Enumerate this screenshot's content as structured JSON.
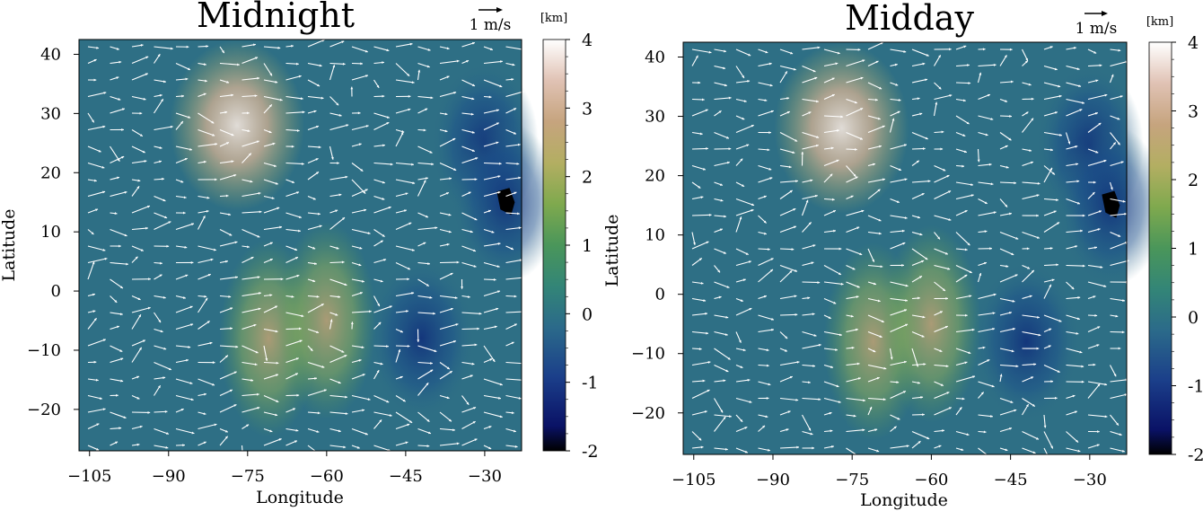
{
  "chart_data": [
    {
      "type": "heatmap",
      "title": "Midnight",
      "xlabel": "Longitude",
      "ylabel": "Latitude",
      "xlim": [
        -107,
        -23
      ],
      "ylim": [
        -27,
        42.5
      ],
      "xticks": [
        -105,
        -90,
        -75,
        -60,
        -45,
        -30
      ],
      "yticks": [
        -20,
        -10,
        0,
        10,
        20,
        30,
        40
      ],
      "xtick_labels": [
        "−105",
        "−90",
        "−75",
        "−60",
        "−45",
        "−30"
      ],
      "ytick_labels": [
        "−20",
        "−10",
        "0",
        "10",
        "20",
        "30",
        "40"
      ],
      "quiver_key": "1 m/s",
      "colorbar": {
        "unit": "[km]",
        "range": [
          -2,
          4
        ],
        "ticks": [
          "4",
          "3",
          "2",
          "1",
          "0",
          "-1",
          "-2"
        ],
        "colormap": "gist_earth-like terrain"
      },
      "field_features": [
        {
          "lon": -77,
          "lat": 28,
          "value": 3.6
        },
        {
          "lon": -71,
          "lat": -8,
          "value": 2.4
        },
        {
          "lon": -60,
          "lat": -5,
          "value": 1.8
        },
        {
          "lon": -42,
          "lat": -8,
          "value": -1.2
        },
        {
          "lon": -30,
          "lat": 25,
          "value": -1.4
        },
        {
          "lon": -26,
          "lat": 15,
          "value": -2.0
        }
      ]
    },
    {
      "type": "heatmap",
      "title": "Midday",
      "xlabel": "Longitude",
      "ylabel": "Latitude",
      "xlim": [
        -107,
        -23
      ],
      "ylim": [
        -27,
        42.5
      ],
      "xticks": [
        -105,
        -90,
        -75,
        -60,
        -45,
        -30
      ],
      "yticks": [
        -20,
        -10,
        0,
        10,
        20,
        30,
        40
      ],
      "xtick_labels": [
        "−105",
        "−90",
        "−75",
        "−60",
        "−45",
        "−30"
      ],
      "ytick_labels": [
        "−20",
        "−10",
        "0",
        "10",
        "20",
        "30",
        "40"
      ],
      "quiver_key": "1 m/s",
      "colorbar": {
        "unit": "[km]",
        "range": [
          -2,
          4
        ],
        "ticks": [
          "4",
          "3",
          "2",
          "1",
          "0",
          "-1",
          "-2"
        ],
        "colormap": "gist_earth-like terrain"
      },
      "field_features": [
        {
          "lon": -77,
          "lat": 28,
          "value": 3.5
        },
        {
          "lon": -71,
          "lat": -8,
          "value": 2.2
        },
        {
          "lon": -60,
          "lat": -5,
          "value": 1.6
        },
        {
          "lon": -42,
          "lat": -8,
          "value": -1.1
        },
        {
          "lon": -30,
          "lat": 25,
          "value": -1.5
        },
        {
          "lon": -26,
          "lat": 15,
          "value": -2.0
        }
      ]
    }
  ],
  "colors": {
    "arrow": "#ffffff",
    "background": "#ffffff",
    "colormap_stops": [
      "#000000",
      "#0c1a70",
      "#1b4f8a",
      "#2e6f85",
      "#3f8a6e",
      "#5a9e4f",
      "#a8b25c",
      "#c9a672",
      "#e3c8b8",
      "#ffffff"
    ]
  }
}
